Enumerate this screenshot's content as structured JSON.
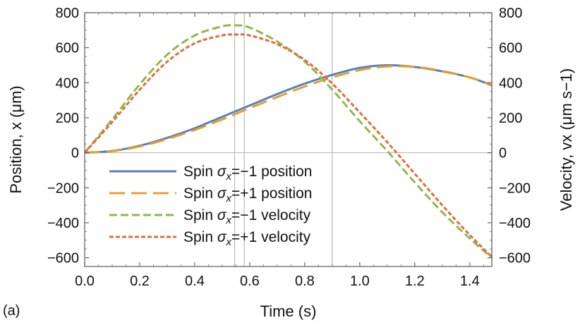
{
  "chart_data": {
    "type": "line",
    "panel_label": "(a)",
    "xlabel": "Time (s)",
    "ylabel_left": "Position, x (μm)",
    "ylabel_right": "Velocity, vx (μm s−1)",
    "xlim": [
      0,
      1.48
    ],
    "ylim_left": [
      -650,
      800
    ],
    "ylim_right": [
      -650,
      800
    ],
    "x_ticks": [
      0.0,
      0.2,
      0.4,
      0.6,
      0.8,
      1.0,
      1.2,
      1.4
    ],
    "x_tick_labels": [
      "0.0",
      "0.2",
      "0.4",
      "0.6",
      "0.8",
      "1.0",
      "1.2",
      "1.4"
    ],
    "y_ticks": [
      -600,
      -400,
      -200,
      0,
      200,
      400,
      600,
      800
    ],
    "y_tick_labels_left": [
      "−600",
      "−400",
      "−200",
      "0",
      "200",
      "400",
      "600",
      "800"
    ],
    "y_tick_labels_right": [
      "−600",
      "−400",
      "−200",
      "0",
      "200",
      "400",
      "600",
      "800"
    ],
    "vertical_markers": [
      0.545,
      0.58,
      0.9,
      1.48
    ],
    "legend": {
      "placement": "bottom-left",
      "entries": [
        {
          "series": 0,
          "prefix": "Spin ",
          "symbol": "σ",
          "subscript": "x",
          "suffix": "=−1 position"
        },
        {
          "series": 1,
          "prefix": "Spin ",
          "symbol": "σ",
          "subscript": "x",
          "suffix": "=+1 position"
        },
        {
          "series": 2,
          "prefix": "Spin ",
          "symbol": "σ",
          "subscript": "x",
          "suffix": "=−1 velocity"
        },
        {
          "series": 3,
          "prefix": "Spin ",
          "symbol": "σ",
          "subscript": "x",
          "suffix": "=+1 velocity"
        }
      ]
    },
    "series": [
      {
        "name": "Spin σx=−1 position",
        "color": "#5b7fb8",
        "style": "solid",
        "x": [
          0,
          0.1,
          0.2,
          0.3,
          0.4,
          0.5,
          0.6,
          0.7,
          0.8,
          0.9,
          1.0,
          1.1,
          1.2,
          1.3,
          1.4,
          1.48
        ],
        "y": [
          0,
          10,
          40,
          85,
          140,
          205,
          270,
          335,
          395,
          445,
          485,
          500,
          490,
          465,
          430,
          385
        ]
      },
      {
        "name": "Spin σx=+1 position",
        "color": "#e0a030",
        "style": "long-dash",
        "x": [
          0,
          0.1,
          0.2,
          0.3,
          0.4,
          0.5,
          0.6,
          0.7,
          0.8,
          0.9,
          1.0,
          1.1,
          1.2,
          1.3,
          1.4,
          1.48
        ],
        "y": [
          0,
          9,
          36,
          78,
          130,
          190,
          255,
          318,
          378,
          430,
          472,
          493,
          490,
          467,
          430,
          388
        ]
      },
      {
        "name": "Spin σx=−1 velocity",
        "color": "#8fb84a",
        "style": "dash",
        "x": [
          0,
          0.1,
          0.2,
          0.3,
          0.4,
          0.5,
          0.55,
          0.6,
          0.7,
          0.8,
          0.9,
          1.0,
          1.1,
          1.2,
          1.3,
          1.4,
          1.48
        ],
        "y": [
          0,
          190,
          390,
          560,
          670,
          722,
          728,
          715,
          635,
          520,
          360,
          180,
          10,
          -170,
          -340,
          -490,
          -600
        ]
      },
      {
        "name": "Spin σx=+1 velocity",
        "color": "#e06e3c",
        "style": "short-dash",
        "x": [
          0,
          0.1,
          0.2,
          0.3,
          0.4,
          0.5,
          0.55,
          0.6,
          0.7,
          0.8,
          0.9,
          1.0,
          1.1,
          1.2,
          1.3,
          1.4,
          1.48
        ],
        "y": [
          0,
          175,
          360,
          520,
          625,
          670,
          675,
          670,
          620,
          530,
          395,
          230,
          60,
          -120,
          -300,
          -470,
          -595
        ]
      }
    ]
  }
}
